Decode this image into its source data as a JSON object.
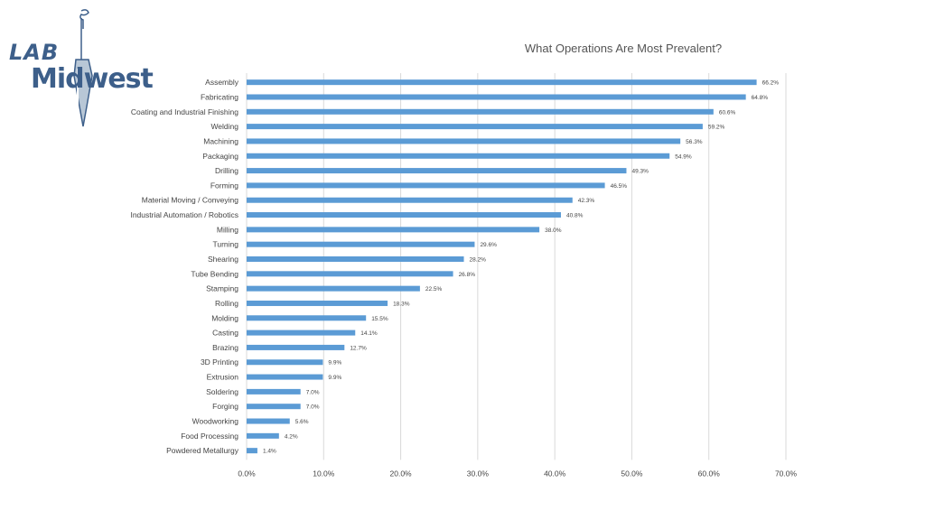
{
  "logo": {
    "line1": "LAB",
    "line2": "Midwest"
  },
  "colors": {
    "bar": "#5b9bd5",
    "grid": "#d9d9d9",
    "logo": "#3d5f8a"
  },
  "chart_data": {
    "type": "bar",
    "orientation": "horizontal",
    "title": "What Operations Are Most Prevalent?",
    "xlabel": "",
    "ylabel": "",
    "xlim": [
      0,
      70
    ],
    "x_ticks": [
      "0.0%",
      "10.0%",
      "20.0%",
      "30.0%",
      "40.0%",
      "50.0%",
      "60.0%",
      "70.0%"
    ],
    "grid": true,
    "categories": [
      "Assembly",
      "Fabricating",
      "Coating and Industrial Finishing",
      "Welding",
      "Machining",
      "Packaging",
      "Drilling",
      "Forming",
      "Material Moving / Conveying",
      "Industrial Automation / Robotics",
      "Milling",
      "Turning",
      "Shearing",
      "Tube Bending",
      "Stamping",
      "Rolling",
      "Molding",
      "Casting",
      "Brazing",
      "3D Printing",
      "Extrusion",
      "Soldering",
      "Forging",
      "Woodworking",
      "Food Processing",
      "Powdered Metallurgy"
    ],
    "values": [
      66.2,
      64.8,
      60.6,
      59.2,
      56.3,
      54.9,
      49.3,
      46.5,
      42.3,
      40.8,
      38.0,
      29.6,
      28.2,
      26.8,
      22.5,
      18.3,
      15.5,
      14.1,
      12.7,
      9.9,
      9.9,
      7.0,
      7.0,
      5.6,
      4.2,
      1.4
    ],
    "data_labels": [
      "66.2%",
      "64.8%",
      "60.6%",
      "59.2%",
      "56.3%",
      "54.9%",
      "49.3%",
      "46.5%",
      "42.3%",
      "40.8%",
      "38.0%",
      "29.6%",
      "28.2%",
      "26.8%",
      "22.5%",
      "18.3%",
      "15.5%",
      "14.1%",
      "12.7%",
      "9.9%",
      "9.9%",
      "7.0%",
      "7.0%",
      "5.6%",
      "4.2%",
      "1.4%"
    ]
  }
}
